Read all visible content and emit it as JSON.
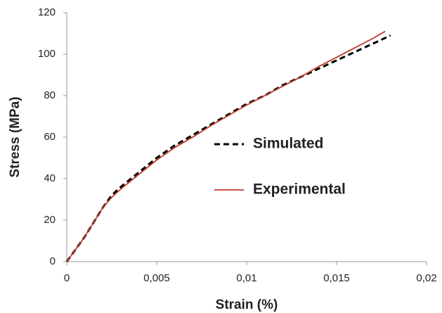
{
  "chart_data": {
    "type": "line",
    "xlabel": "Strain (%)",
    "ylabel": "Stress (MPa)",
    "xlim": [
      0,
      0.02
    ],
    "ylim": [
      0,
      120
    ],
    "xticks": [
      0,
      {
        "value": 0.005,
        "label": "0,005"
      },
      {
        "value": 0.01,
        "label": "0,01"
      },
      {
        "value": 0.015,
        "label": "0,015"
      },
      {
        "value": 0.02,
        "label": "0,02"
      }
    ],
    "yticks": [
      0,
      20,
      40,
      60,
      80,
      100,
      120
    ],
    "grid": false,
    "series": [
      {
        "name": "Simulated",
        "color": "#000000",
        "dash": true,
        "x": [
          0,
          0.001,
          0.002,
          0.0025,
          0.003,
          0.004,
          0.005,
          0.006,
          0.007,
          0.008,
          0.009,
          0.01,
          0.011,
          0.012,
          0.013,
          0.014,
          0.015,
          0.016,
          0.017,
          0.018
        ],
        "values": [
          0,
          12,
          26,
          32,
          36,
          43,
          50,
          56,
          61,
          66,
          71,
          76,
          80,
          85,
          89,
          93,
          97,
          101,
          105,
          109
        ]
      },
      {
        "name": "Experimental",
        "color": "#c0392b",
        "dash": false,
        "x": [
          0,
          0.001,
          0.002,
          0.0025,
          0.003,
          0.004,
          0.005,
          0.006,
          0.007,
          0.008,
          0.009,
          0.01,
          0.011,
          0.012,
          0.013,
          0.014,
          0.015,
          0.016,
          0.017,
          0.0177
        ],
        "values": [
          0,
          12,
          26,
          31,
          35,
          42,
          49,
          55,
          60,
          65.5,
          70.5,
          75.5,
          80,
          84.5,
          89,
          94,
          98.5,
          103,
          107.5,
          111
        ]
      }
    ]
  }
}
